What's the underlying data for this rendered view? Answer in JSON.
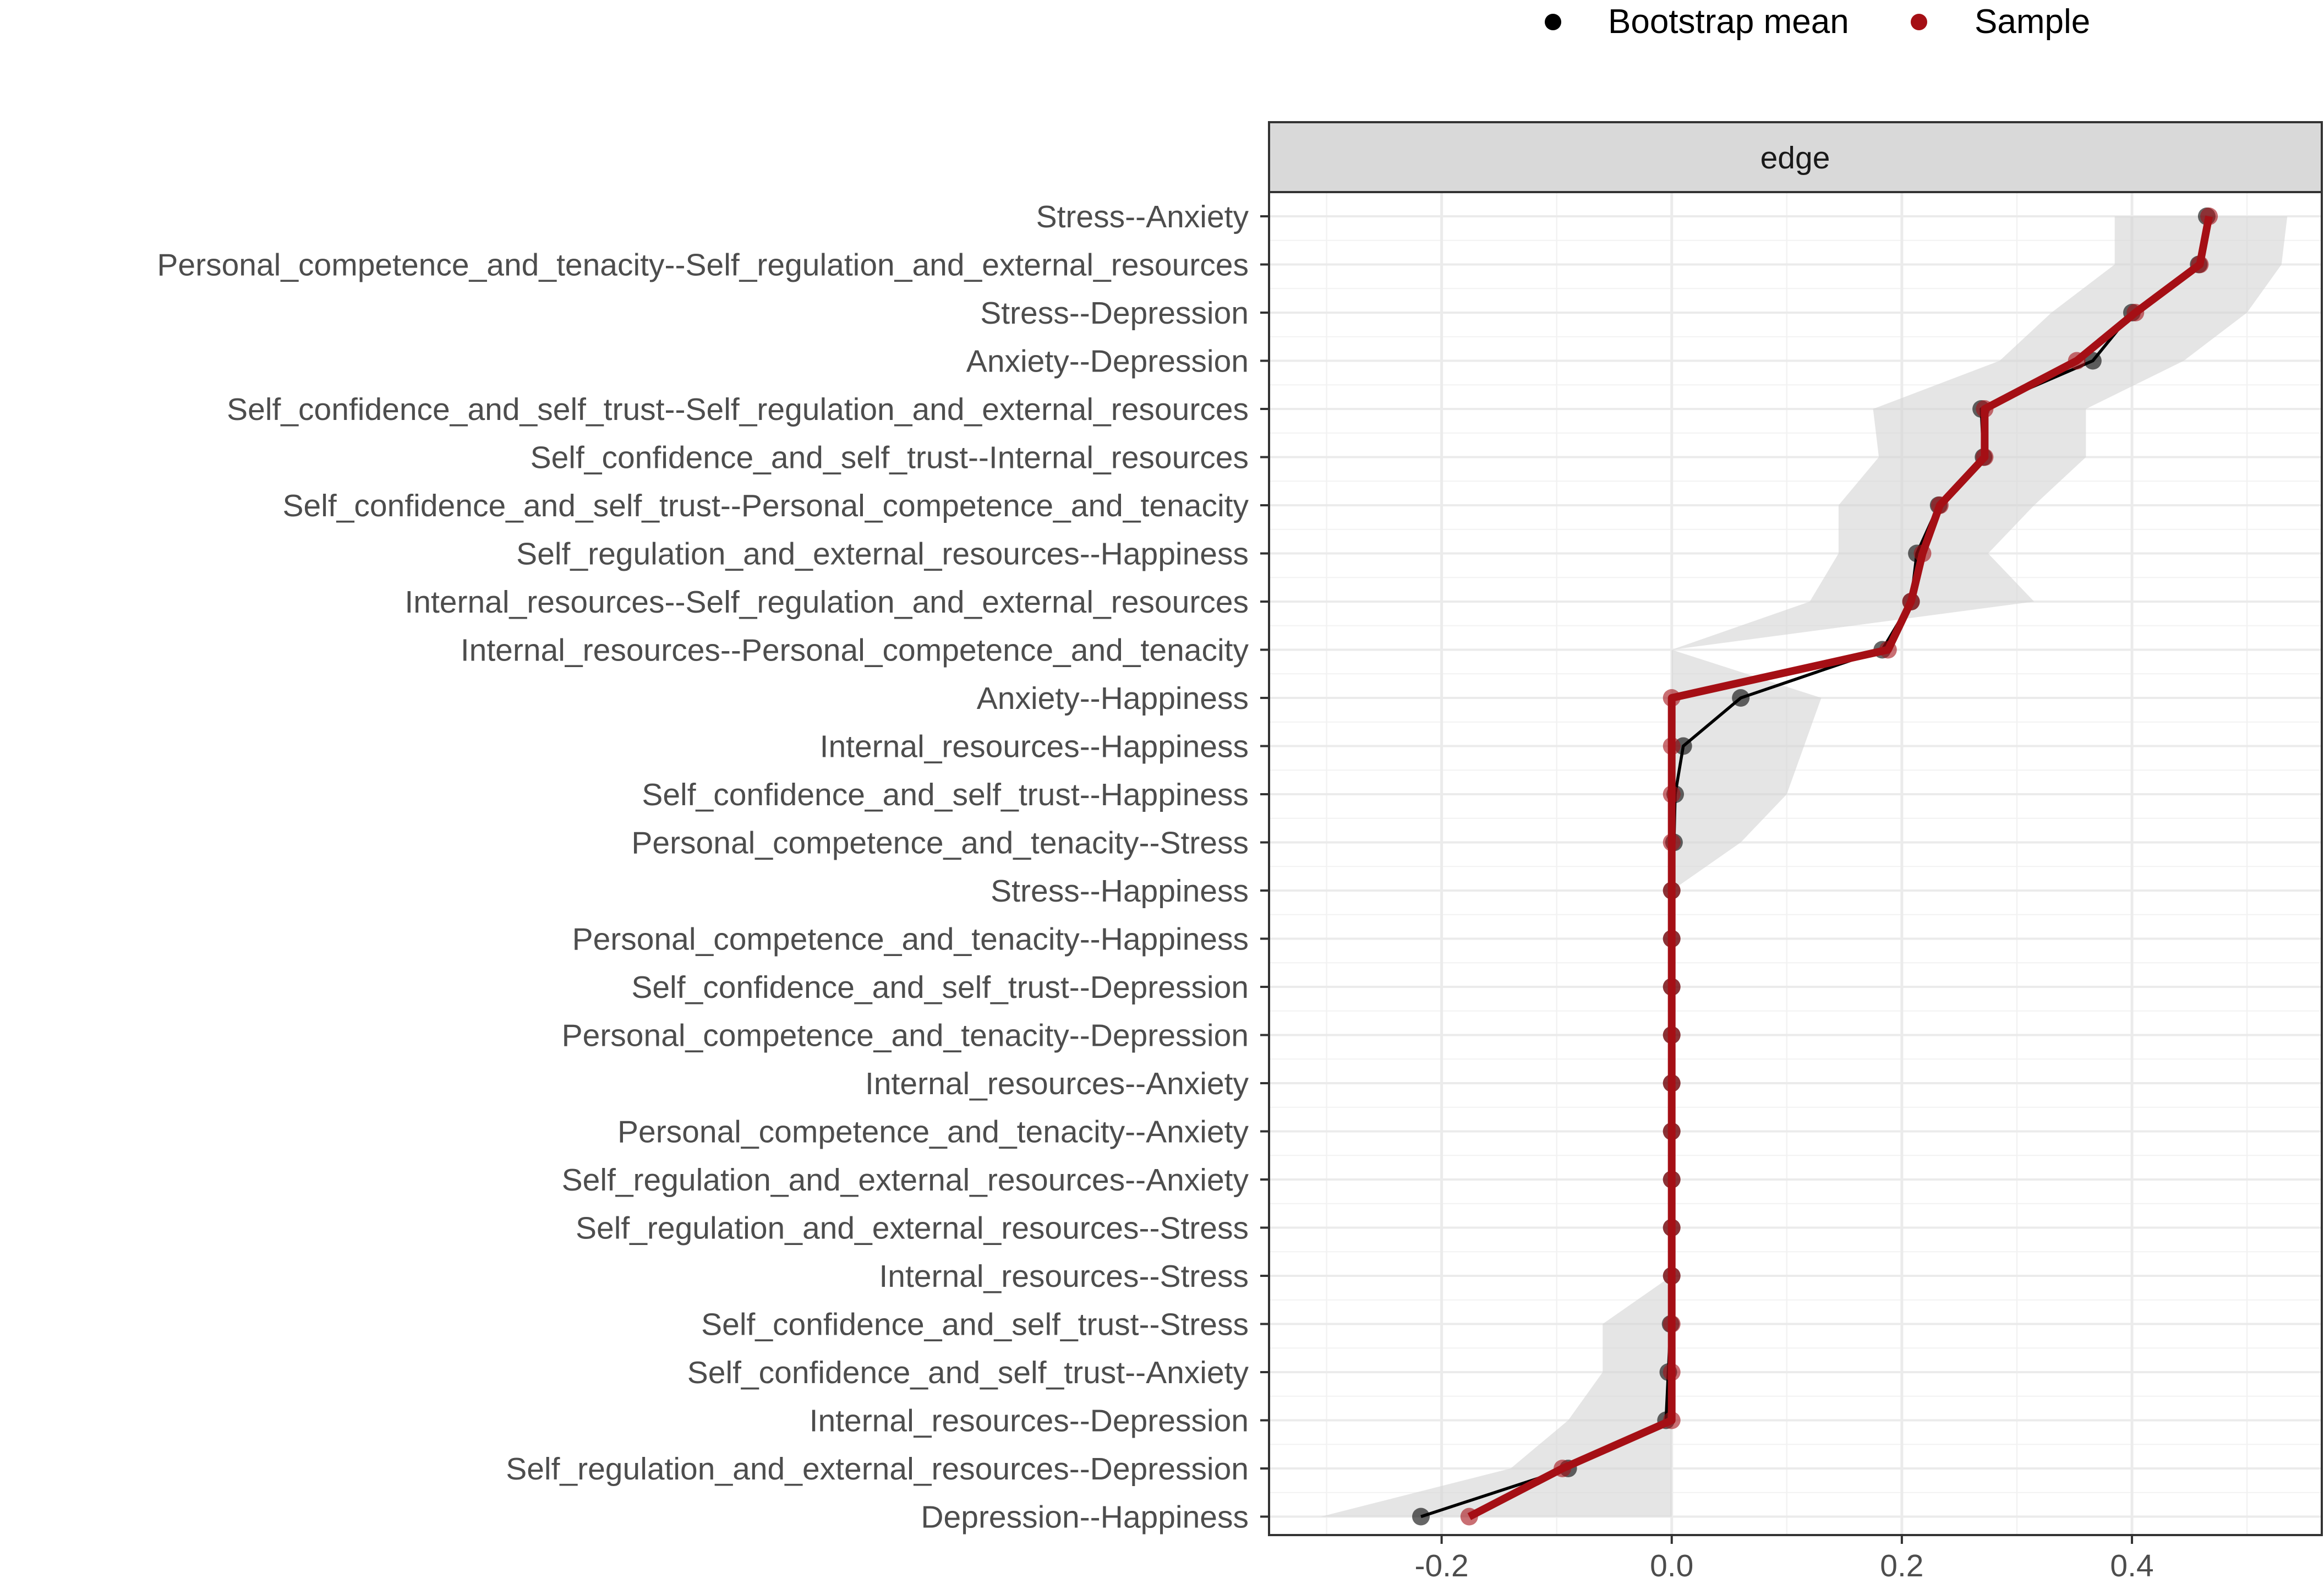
{
  "chart_data": {
    "type": "line",
    "title": "",
    "facet_label": "edge",
    "xlabel": "",
    "ylabel": "",
    "xlim": [
      -0.35,
      0.565
    ],
    "x_ticks": [
      -0.2,
      0.0,
      0.2,
      0.4
    ],
    "x_tick_labels": [
      "-0.2",
      "0.0",
      "0.2",
      "0.4"
    ],
    "grid": true,
    "legend_position": "top-right",
    "legend": [
      {
        "key": "bootstrap",
        "label": "Bootstrap mean",
        "color": "#000000"
      },
      {
        "key": "sample",
        "label": "Sample",
        "color": "#a50f15"
      }
    ],
    "categories": [
      "Stress--Anxiety",
      "Personal_competence_and_tenacity--Self_regulation_and_external_resources",
      "Stress--Depression",
      "Anxiety--Depression",
      "Self_confidence_and_self_trust--Self_regulation_and_external_resources",
      "Self_confidence_and_self_trust--Internal_resources",
      "Self_confidence_and_self_trust--Personal_competence_and_tenacity",
      "Self_regulation_and_external_resources--Happiness",
      "Internal_resources--Self_regulation_and_external_resources",
      "Internal_resources--Personal_competence_and_tenacity",
      "Anxiety--Happiness",
      "Internal_resources--Happiness",
      "Self_confidence_and_self_trust--Happiness",
      "Personal_competence_and_tenacity--Stress",
      "Stress--Happiness",
      "Personal_competence_and_tenacity--Happiness",
      "Self_confidence_and_self_trust--Depression",
      "Personal_competence_and_tenacity--Depression",
      "Internal_resources--Anxiety",
      "Personal_competence_and_tenacity--Anxiety",
      "Self_regulation_and_external_resources--Anxiety",
      "Self_regulation_and_external_resources--Stress",
      "Internal_resources--Stress",
      "Self_confidence_and_self_trust--Stress",
      "Self_confidence_and_self_trust--Anxiety",
      "Internal_resources--Depression",
      "Self_regulation_and_external_resources--Depression",
      "Depression--Happiness"
    ],
    "series": [
      {
        "name": "Sample",
        "key": "sample",
        "values": [
          0.467,
          0.459,
          0.403,
          0.352,
          0.272,
          0.272,
          0.233,
          0.218,
          0.208,
          0.188,
          0.0,
          0.0,
          0.0,
          0.0,
          0.0,
          0.0,
          0.0,
          0.0,
          0.0,
          0.0,
          0.0,
          0.0,
          0.0,
          0.0,
          0.0,
          0.0,
          -0.095,
          -0.176
        ]
      },
      {
        "name": "Bootstrap mean",
        "key": "bootstrap",
        "values": [
          0.465,
          0.458,
          0.4,
          0.366,
          0.269,
          0.271,
          0.232,
          0.213,
          0.208,
          0.183,
          0.06,
          0.01,
          0.003,
          0.002,
          0.0,
          0.0,
          0.0,
          0.0,
          0.0,
          0.0,
          0.0,
          0.0,
          0.0,
          -0.001,
          -0.003,
          -0.005,
          -0.09,
          -0.218
        ]
      }
    ],
    "ci_band": {
      "name": "Bootstrap CI",
      "lower": [
        0.385,
        0.385,
        0.33,
        0.285,
        0.175,
        0.18,
        0.145,
        0.145,
        0.12,
        0.0,
        0.0,
        0.0,
        0.0,
        0.0,
        0.0,
        0.0,
        0.0,
        0.0,
        0.0,
        0.0,
        0.0,
        0.0,
        0.0,
        -0.06,
        -0.06,
        -0.09,
        -0.14,
        -0.305
      ],
      "upper": [
        0.535,
        0.53,
        0.5,
        0.445,
        0.36,
        0.36,
        0.315,
        0.275,
        0.315,
        0.0,
        0.13,
        0.115,
        0.1,
        0.06,
        0.0,
        0.0,
        0.0,
        0.0,
        0.0,
        0.0,
        0.0,
        0.0,
        0.0,
        0.0,
        0.0,
        0.0,
        0.0,
        0.0
      ]
    }
  }
}
